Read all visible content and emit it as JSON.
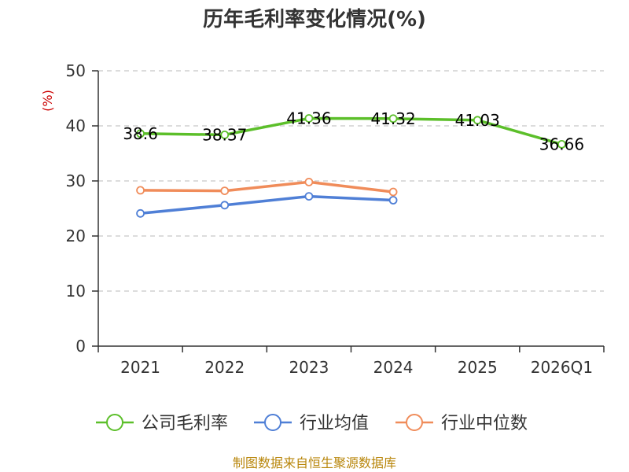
{
  "chart_data": {
    "type": "line",
    "title": "历年毛利率变化情况(%)",
    "ylabel": "(%)",
    "ylim": [
      0,
      50
    ],
    "yticks": [
      0,
      10,
      20,
      30,
      40,
      50
    ],
    "categories": [
      "2021",
      "2022",
      "2023",
      "2024",
      "2025",
      "2026Q1"
    ],
    "series": [
      {
        "name": "公司毛利率",
        "color": "#5cbf2a",
        "values": [
          38.6,
          38.37,
          41.36,
          41.32,
          41.03,
          36.66
        ],
        "labels": [
          "38.6",
          "38.37",
          "41.36",
          "41.32",
          "41.03",
          "36.66"
        ]
      },
      {
        "name": "行业均值",
        "color": "#4f7fd6",
        "values": [
          24.1,
          25.6,
          27.2,
          26.5,
          null,
          null
        ]
      },
      {
        "name": "行业中位数",
        "color": "#f08c5a",
        "values": [
          28.3,
          28.2,
          29.8,
          28.0,
          null,
          null
        ]
      }
    ],
    "grid": true,
    "legend_position": "bottom",
    "source": "制图数据来自恒生聚源数据库"
  }
}
